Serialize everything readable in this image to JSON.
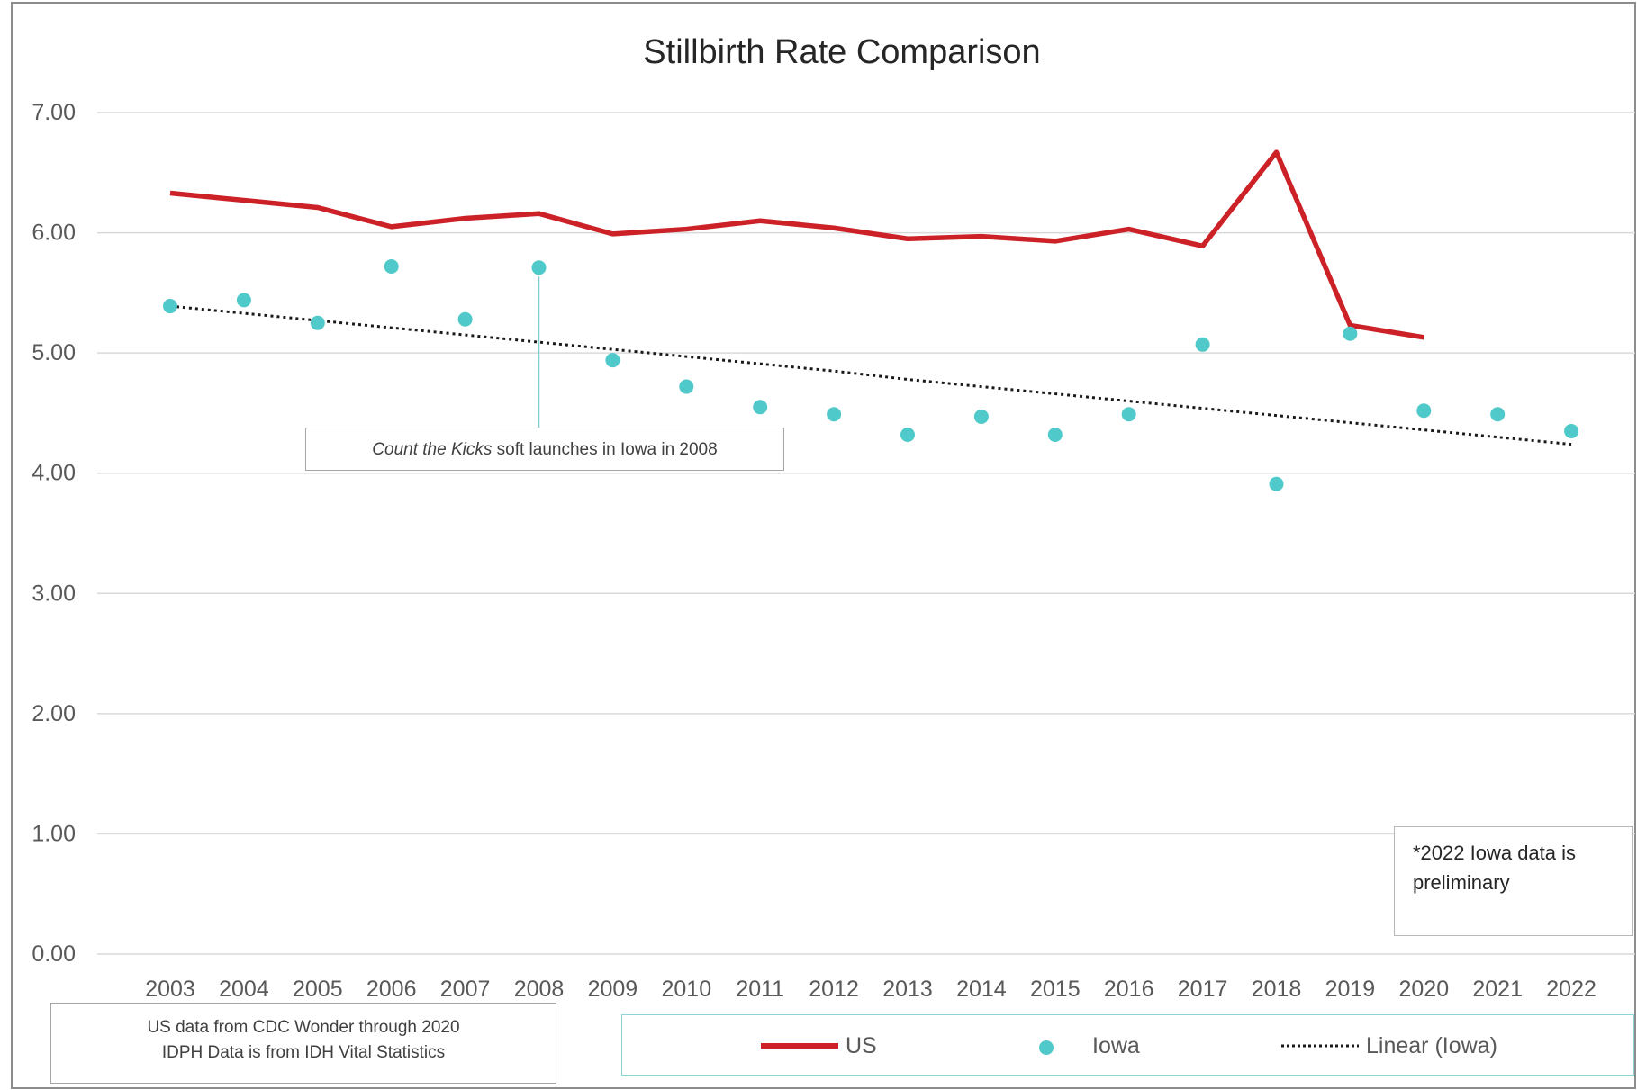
{
  "chart_data": {
    "type": "line",
    "title": "Stillbirth Rate Comparison",
    "categories": [
      "2003",
      "2004",
      "2005",
      "2006",
      "2007",
      "2008",
      "2009",
      "2010",
      "2011",
      "2012",
      "2013",
      "2014",
      "2015",
      "2016",
      "2017",
      "2018",
      "2019",
      "2020",
      "2021",
      "2022"
    ],
    "y_ticks": [
      "0.00",
      "1.00",
      "2.00",
      "3.00",
      "4.00",
      "5.00",
      "6.00",
      "7.00"
    ],
    "ylim": [
      0,
      7
    ],
    "grid": true,
    "series": [
      {
        "name": "US",
        "kind": "line",
        "color": "#cc2127",
        "values": [
          6.33,
          6.27,
          6.21,
          6.05,
          6.12,
          6.16,
          5.99,
          6.03,
          6.1,
          6.04,
          5.95,
          5.97,
          5.93,
          6.03,
          5.89,
          6.67,
          5.23,
          5.13,
          null,
          null
        ]
      },
      {
        "name": "Iowa",
        "kind": "scatter",
        "color": "#4fc9c9",
        "values": [
          5.39,
          5.44,
          5.25,
          5.72,
          5.28,
          5.71,
          4.94,
          4.72,
          4.55,
          4.49,
          4.32,
          4.47,
          4.32,
          4.49,
          5.07,
          3.91,
          5.16,
          4.52,
          4.49,
          4.35
        ]
      },
      {
        "name": "Linear (Iowa)",
        "kind": "trendline",
        "color": "#1a1a1a",
        "values": [
          5.39,
          5.33,
          5.27,
          5.21,
          5.15,
          5.09,
          5.03,
          4.97,
          4.91,
          4.85,
          4.78,
          4.72,
          4.66,
          4.6,
          4.54,
          4.48,
          4.42,
          4.36,
          4.3,
          4.24
        ]
      }
    ],
    "annotation": {
      "category": "2008",
      "text_em": "Count the Kicks",
      "text_rest": " soft launches in Iowa in 2008"
    },
    "note_lines": [
      "*2022 Iowa data is",
      "preliminary"
    ],
    "source_lines": [
      "US data from CDC Wonder through 2020",
      "IDPH Data is from IDH Vital Statistics"
    ],
    "legend_placement": "bottom-right"
  }
}
